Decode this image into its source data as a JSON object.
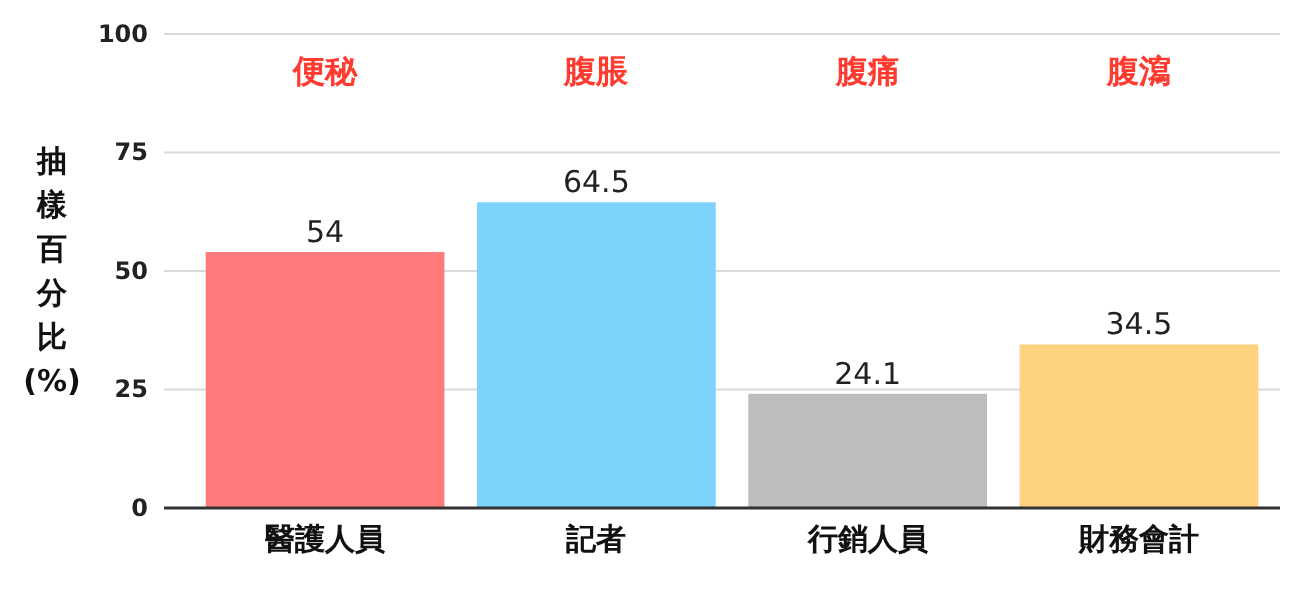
{
  "chart_data": {
    "type": "bar",
    "ylabel": "抽樣百分比(%)",
    "categories": [
      "醫護人員",
      "記者",
      "行銷人員",
      "財務會計"
    ],
    "values": [
      54,
      64.5,
      24.1,
      34.5
    ],
    "colors": [
      "#ff7b7b",
      "#7dd3fb",
      "#bdbdbd",
      "#fdd27e"
    ],
    "ylim": [
      0,
      100
    ],
    "yticks": [
      0,
      25,
      50,
      75,
      100
    ],
    "grid": "y",
    "data_labels": true,
    "annotations": [
      "便秘",
      "腹脹",
      "腹痛",
      "腹瀉"
    ]
  }
}
